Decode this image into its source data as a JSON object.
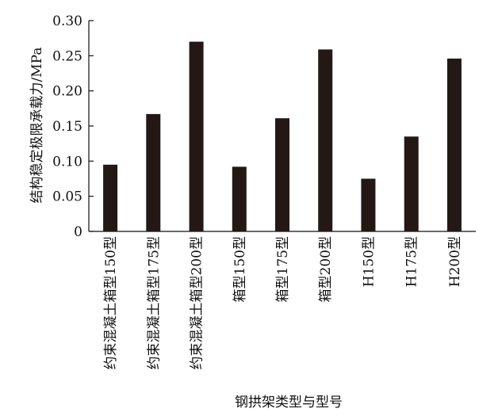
{
  "chart_data": {
    "type": "bar",
    "title": "",
    "xlabel": "钢拱架类型与型号",
    "ylabel": "结构稳定极限承载力/MPa",
    "categories": [
      "约束混凝土箱型150型",
      "约束混凝土箱型175型",
      "约束混凝土箱型200型",
      "箱型150型",
      "箱型175型",
      "箱型200型",
      "H150型",
      "H175型",
      "H200型"
    ],
    "values": [
      0.095,
      0.167,
      0.27,
      0.092,
      0.161,
      0.259,
      0.075,
      0.135,
      0.246
    ],
    "ylim": [
      0,
      0.3
    ],
    "yticks": [
      "0",
      "0.05",
      "0.10",
      "0.15",
      "0.20",
      "0.25",
      "0.30"
    ],
    "grid": false,
    "legend": "none",
    "bar_color": "#231815"
  }
}
